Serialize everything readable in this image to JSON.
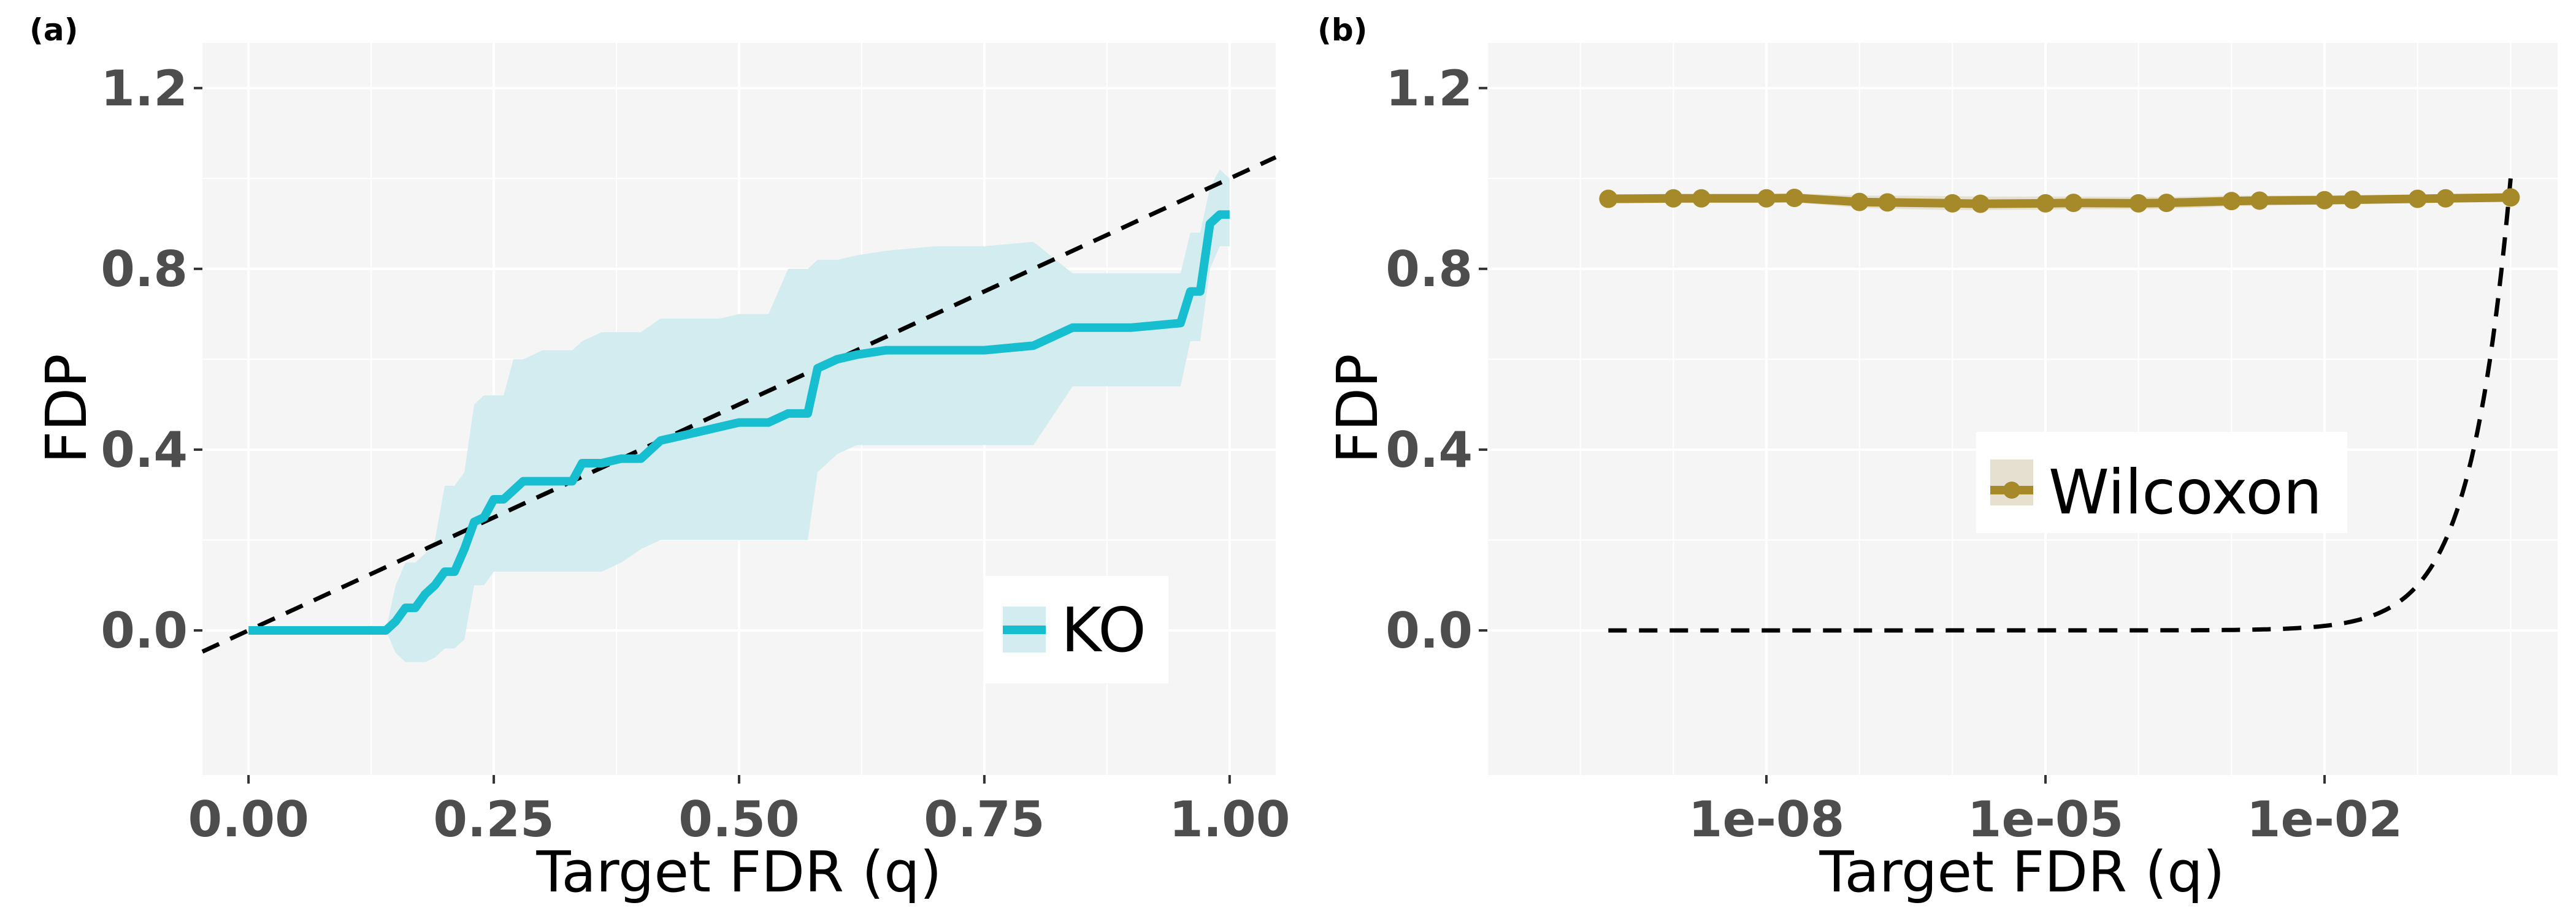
{
  "panels": [
    {
      "tag": "(a)"
    },
    {
      "tag": "(b)"
    }
  ],
  "chart_data": [
    {
      "type": "line",
      "panel": "(a)",
      "xlabel": "Target FDR (q)",
      "ylabel": "FDP",
      "xlim": [
        -0.047,
        1.047
      ],
      "ylim": [
        -0.32,
        1.3
      ],
      "x_ticks": [
        0.0,
        0.25,
        0.5,
        0.75,
        1.0
      ],
      "x_tick_labels": [
        "0.00",
        "0.25",
        "0.50",
        "0.75",
        "1.00"
      ],
      "y_ticks": [
        0.0,
        0.4,
        0.8,
        1.2
      ],
      "y_tick_labels": [
        "0.0",
        "0.4",
        "0.8",
        "1.2"
      ],
      "grid": true,
      "legend_position": "bottom-right",
      "reference_line": {
        "style": "dashed",
        "color": "#000000",
        "x": [
          -0.047,
          1.047
        ],
        "y": [
          -0.047,
          1.047
        ]
      },
      "series": [
        {
          "name": "KO",
          "color": "#17becf",
          "band_color": "#d3ecf0",
          "x": [
            0.0,
            0.14,
            0.15,
            0.16,
            0.17,
            0.18,
            0.19,
            0.2,
            0.21,
            0.22,
            0.23,
            0.24,
            0.25,
            0.26,
            0.27,
            0.28,
            0.3,
            0.33,
            0.34,
            0.36,
            0.38,
            0.4,
            0.42,
            0.44,
            0.46,
            0.48,
            0.5,
            0.53,
            0.55,
            0.57,
            0.58,
            0.6,
            0.62,
            0.65,
            0.7,
            0.75,
            0.8,
            0.84,
            0.9,
            0.95,
            0.96,
            0.97,
            0.98,
            0.99,
            1.0
          ],
          "y": [
            0.0,
            0.0,
            0.02,
            0.05,
            0.05,
            0.08,
            0.1,
            0.13,
            0.13,
            0.18,
            0.24,
            0.25,
            0.29,
            0.29,
            0.31,
            0.33,
            0.33,
            0.33,
            0.37,
            0.37,
            0.38,
            0.38,
            0.42,
            0.43,
            0.44,
            0.45,
            0.46,
            0.46,
            0.48,
            0.48,
            0.58,
            0.6,
            0.61,
            0.62,
            0.62,
            0.62,
            0.63,
            0.67,
            0.67,
            0.68,
            0.75,
            0.75,
            0.9,
            0.92,
            0.92
          ],
          "lower": [
            0.0,
            0.0,
            -0.05,
            -0.07,
            -0.07,
            -0.07,
            -0.06,
            -0.04,
            -0.04,
            -0.02,
            0.1,
            0.1,
            0.13,
            0.13,
            0.13,
            0.13,
            0.13,
            0.13,
            0.13,
            0.13,
            0.15,
            0.18,
            0.2,
            0.2,
            0.2,
            0.2,
            0.2,
            0.2,
            0.2,
            0.2,
            0.35,
            0.39,
            0.41,
            0.41,
            0.41,
            0.41,
            0.41,
            0.54,
            0.54,
            0.54,
            0.64,
            0.64,
            0.8,
            0.85,
            0.85
          ],
          "upper": [
            0.0,
            0.0,
            0.1,
            0.15,
            0.15,
            0.17,
            0.2,
            0.32,
            0.32,
            0.35,
            0.5,
            0.52,
            0.52,
            0.52,
            0.6,
            0.6,
            0.62,
            0.62,
            0.64,
            0.66,
            0.66,
            0.66,
            0.69,
            0.69,
            0.69,
            0.69,
            0.7,
            0.7,
            0.8,
            0.8,
            0.82,
            0.82,
            0.83,
            0.84,
            0.85,
            0.85,
            0.86,
            0.79,
            0.79,
            0.79,
            0.88,
            0.88,
            0.98,
            1.02,
            1.0
          ]
        }
      ]
    },
    {
      "type": "line",
      "panel": "(b)",
      "xlabel": "Target FDR (q)",
      "ylabel": "FDP",
      "x_scale": "log10",
      "xlim": [
        1e-11,
        3.2
      ],
      "ylim": [
        -0.32,
        1.3
      ],
      "x_ticks": [
        1e-08,
        1e-05,
        0.01
      ],
      "x_tick_labels": [
        "1e-08",
        "1e-05",
        "1e-02"
      ],
      "y_ticks": [
        0.0,
        0.4,
        0.8,
        1.2
      ],
      "y_tick_labels": [
        "0.0",
        "0.4",
        "0.8",
        "1.2"
      ],
      "grid": true,
      "legend_position": "center-right",
      "reference_line": {
        "style": "dashed",
        "color": "#000000",
        "description": "y = q",
        "x_range": [
          2e-10,
          1.0
        ]
      },
      "series": [
        {
          "name": "Wilcoxon",
          "color": "#a68a2a",
          "band_color": "#e5e0d0",
          "x": [
            2e-10,
            1e-09,
            2e-09,
            1e-08,
            2e-08,
            1e-07,
            2e-07,
            1e-06,
            2e-06,
            1e-05,
            2e-05,
            0.0001,
            0.0002,
            0.001,
            0.002,
            0.01,
            0.02,
            0.1,
            0.2,
            1.0
          ],
          "y": [
            0.955,
            0.956,
            0.956,
            0.956,
            0.957,
            0.948,
            0.947,
            0.945,
            0.944,
            0.945,
            0.946,
            0.945,
            0.946,
            0.95,
            0.951,
            0.952,
            0.953,
            0.955,
            0.956,
            0.958
          ],
          "lower": [
            0.945,
            0.946,
            0.946,
            0.946,
            0.947,
            0.935,
            0.933,
            0.93,
            0.93,
            0.931,
            0.932,
            0.932,
            0.933,
            0.938,
            0.94,
            0.942,
            0.943,
            0.946,
            0.947,
            0.95
          ],
          "upper": [
            0.965,
            0.966,
            0.966,
            0.966,
            0.967,
            0.962,
            0.962,
            0.961,
            0.96,
            0.96,
            0.96,
            0.959,
            0.959,
            0.962,
            0.962,
            0.963,
            0.963,
            0.964,
            0.965,
            0.967
          ]
        }
      ]
    }
  ]
}
